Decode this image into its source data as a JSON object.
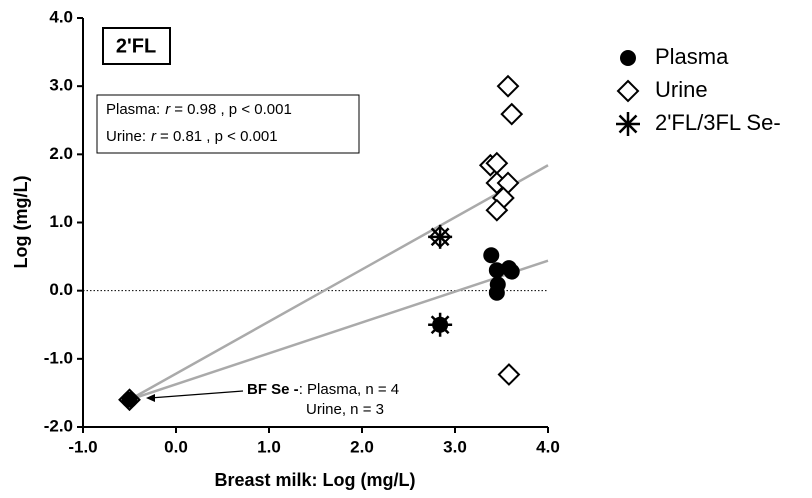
{
  "chart_data": {
    "type": "scatter",
    "panel_label": "2'FL",
    "x_label": "Breast milk: Log (mg/L)",
    "y_label": "Log (mg/L)",
    "xlim": [
      -1,
      4
    ],
    "ylim": [
      -2,
      4
    ],
    "xticks": [
      {
        "value": -1,
        "label": "-1.0"
      },
      {
        "value": 0,
        "label": "0.0"
      },
      {
        "value": 1,
        "label": "1.0"
      },
      {
        "value": 2,
        "label": "2.0"
      },
      {
        "value": 3,
        "label": "3.0"
      },
      {
        "value": 4,
        "label": "4.0"
      }
    ],
    "yticks": [
      {
        "value": -2,
        "label": "-2.0"
      },
      {
        "value": -1,
        "label": "-1.0"
      },
      {
        "value": 0,
        "label": "0.0"
      },
      {
        "value": 1,
        "label": "1.0"
      },
      {
        "value": 2,
        "label": "2.0"
      },
      {
        "value": 3,
        "label": "3.0"
      },
      {
        "value": 4,
        "label": "4.0"
      }
    ],
    "reference_line": 0,
    "series": [
      {
        "name": "Plasma",
        "marker": "circle",
        "color": "#000000",
        "x": [
          -0.5,
          3.39,
          3.45,
          3.58,
          3.61,
          3.46,
          3.45,
          2.84
        ],
        "values": [
          -1.6,
          0.52,
          0.3,
          0.33,
          0.28,
          0.09,
          -0.03,
          -0.5
        ]
      },
      {
        "name": "Urine",
        "marker": "diamond",
        "color": "#000000",
        "x": [
          -0.5,
          3.57,
          3.61,
          3.38,
          3.45,
          3.45,
          3.57,
          3.52,
          3.45,
          3.58,
          2.84
        ],
        "values": [
          -1.6,
          3.0,
          2.59,
          1.84,
          1.87,
          1.58,
          1.58,
          1.36,
          1.18,
          -1.23,
          0.79
        ]
      },
      {
        "name": "2'FL/3FL Se-",
        "marker": "asterisk",
        "color": "#000000",
        "x": [
          2.84,
          2.84
        ],
        "values": [
          0.79,
          -0.5
        ]
      }
    ],
    "fit_lines": [
      {
        "color": "#aaaaaa",
        "x": [
          -0.5,
          4.0
        ],
        "values": [
          -1.6,
          1.84
        ]
      },
      {
        "color": "#aaaaaa",
        "x": [
          -0.5,
          4.0
        ],
        "values": [
          -1.6,
          0.44
        ]
      }
    ],
    "stats": [
      {
        "label": "Plasma:",
        "r": "r",
        "rest": "= 0.98 , p < 0.001"
      },
      {
        "label": "Urine:",
        "r": "r",
        "rest": "= 0.81 , p < 0.001"
      }
    ],
    "annotation": {
      "bold": "BF Se -",
      "line1": ": Plasma, n = 4",
      "line2": "Urine, n = 3"
    }
  }
}
